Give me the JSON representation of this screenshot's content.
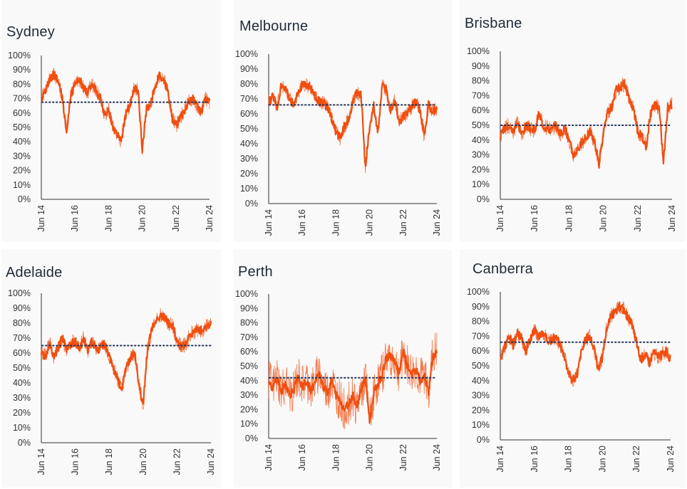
{
  "colors": {
    "series": "#f04e0f",
    "average_line": "#24335a",
    "axis": "#333333",
    "panel_bg": "#f9f9f9",
    "title": "#1f2a36"
  },
  "common": {
    "y_ticks": [
      "0%",
      "10%",
      "20%",
      "30%",
      "40%",
      "50%",
      "60%",
      "70%",
      "80%",
      "90%",
      "100%"
    ],
    "x_ticks": [
      "Jun 14",
      "Jun 16",
      "Jun 18",
      "Jun 20",
      "Jun 22",
      "Jun 24"
    ]
  },
  "chart_data": [
    {
      "type": "line",
      "title": "Sydney",
      "ylim": [
        0,
        100
      ],
      "average": 67.5,
      "x": [
        "Jun 14",
        "Sep 14",
        "Dec 14",
        "Mar 15",
        "Jun 15",
        "Sep 15",
        "Dec 15",
        "Mar 16",
        "Jun 16",
        "Sep 16",
        "Dec 16",
        "Mar 17",
        "Jun 17",
        "Sep 17",
        "Dec 17",
        "Mar 18",
        "Jun 18",
        "Sep 18",
        "Dec 18",
        "Mar 19",
        "Jun 19",
        "Sep 19",
        "Dec 19",
        "Mar 20",
        "Jun 20",
        "Sep 20",
        "Dec 20",
        "Mar 21",
        "Jun 21",
        "Sep 21",
        "Dec 21",
        "Mar 22",
        "Jun 22",
        "Sep 22",
        "Dec 22",
        "Mar 23",
        "Jun 23",
        "Sep 23",
        "Dec 23",
        "Mar 24",
        "Jun 24"
      ],
      "values": [
        70,
        76,
        84,
        87,
        83,
        70,
        48,
        72,
        80,
        83,
        78,
        74,
        80,
        76,
        71,
        58,
        62,
        50,
        46,
        40,
        58,
        65,
        77,
        76,
        35,
        62,
        67,
        78,
        86,
        84,
        76,
        58,
        51,
        56,
        62,
        68,
        70,
        65,
        60,
        70,
        68
      ]
    },
    {
      "type": "line",
      "title": "Melbourne",
      "ylim": [
        0,
        100
      ],
      "average": 66,
      "x": [
        "Jun 14",
        "Sep 14",
        "Dec 14",
        "Mar 15",
        "Jun 15",
        "Sep 15",
        "Dec 15",
        "Mar 16",
        "Jun 16",
        "Sep 16",
        "Dec 16",
        "Mar 17",
        "Jun 17",
        "Sep 17",
        "Dec 17",
        "Mar 18",
        "Jun 18",
        "Sep 18",
        "Dec 18",
        "Mar 19",
        "Jun 19",
        "Sep 19",
        "Dec 19",
        "Mar 20",
        "Jun 20",
        "Sep 20",
        "Dec 20",
        "Mar 21",
        "Jun 21",
        "Sep 21",
        "Dec 21",
        "Mar 22",
        "Jun 22",
        "Sep 22",
        "Dec 22",
        "Mar 23",
        "Jun 23",
        "Sep 23",
        "Dec 23",
        "Mar 24",
        "Jun 24"
      ],
      "values": [
        68,
        72,
        64,
        80,
        76,
        70,
        66,
        74,
        80,
        79,
        77,
        72,
        68,
        68,
        64,
        57,
        48,
        44,
        52,
        56,
        68,
        74,
        72,
        25,
        50,
        65,
        48,
        78,
        76,
        62,
        70,
        55,
        58,
        60,
        65,
        68,
        62,
        45,
        66,
        62,
        63
      ]
    },
    {
      "type": "line",
      "title": "Brisbane",
      "ylim": [
        0,
        100
      ],
      "average": 50,
      "x": [
        "Jun 14",
        "Sep 14",
        "Dec 14",
        "Mar 15",
        "Jun 15",
        "Sep 15",
        "Dec 15",
        "Mar 16",
        "Jun 16",
        "Sep 16",
        "Dec 16",
        "Mar 17",
        "Jun 17",
        "Sep 17",
        "Dec 17",
        "Mar 18",
        "Jun 18",
        "Sep 18",
        "Dec 18",
        "Mar 19",
        "Jun 19",
        "Sep 19",
        "Dec 19",
        "Mar 20",
        "Jun 20",
        "Sep 20",
        "Dec 20",
        "Mar 21",
        "Jun 21",
        "Sep 21",
        "Dec 21",
        "Mar 22",
        "Jun 22",
        "Sep 22",
        "Dec 22",
        "Mar 23",
        "Jun 23",
        "Sep 23",
        "Dec 23",
        "Mar 24",
        "Jun 24"
      ],
      "values": [
        42,
        48,
        50,
        46,
        52,
        44,
        50,
        48,
        46,
        58,
        50,
        48,
        47,
        50,
        44,
        48,
        40,
        30,
        34,
        38,
        42,
        46,
        38,
        24,
        44,
        58,
        62,
        74,
        76,
        78,
        68,
        62,
        46,
        42,
        36,
        58,
        64,
        62,
        25,
        62,
        64
      ]
    },
    {
      "type": "line",
      "title": "Adelaide",
      "ylim": [
        0,
        100
      ],
      "average": 65,
      "x": [
        "Jun 14",
        "Sep 14",
        "Dec 14",
        "Mar 15",
        "Jun 15",
        "Sep 15",
        "Dec 15",
        "Mar 16",
        "Jun 16",
        "Sep 16",
        "Dec 16",
        "Mar 17",
        "Jun 17",
        "Sep 17",
        "Dec 17",
        "Mar 18",
        "Jun 18",
        "Sep 18",
        "Dec 18",
        "Mar 19",
        "Jun 19",
        "Sep 19",
        "Dec 19",
        "Mar 20",
        "Jun 20",
        "Sep 20",
        "Dec 20",
        "Mar 21",
        "Jun 21",
        "Sep 21",
        "Dec 21",
        "Mar 22",
        "Jun 22",
        "Sep 22",
        "Dec 22",
        "Mar 23",
        "Jun 23",
        "Sep 23",
        "Dec 23",
        "Mar 24",
        "Jun 24"
      ],
      "values": [
        60,
        58,
        68,
        56,
        64,
        70,
        62,
        66,
        68,
        64,
        70,
        62,
        68,
        62,
        64,
        66,
        58,
        50,
        42,
        36,
        50,
        56,
        60,
        40,
        24,
        62,
        76,
        82,
        86,
        84,
        80,
        78,
        68,
        64,
        66,
        72,
        74,
        76,
        74,
        78,
        80
      ]
    },
    {
      "type": "line",
      "title": "Perth",
      "ylim": [
        0,
        100
      ],
      "average": 42,
      "x": [
        "Jun 14",
        "Sep 14",
        "Dec 14",
        "Mar 15",
        "Jun 15",
        "Sep 15",
        "Dec 15",
        "Mar 16",
        "Jun 16",
        "Sep 16",
        "Dec 16",
        "Mar 17",
        "Jun 17",
        "Sep 17",
        "Dec 17",
        "Mar 18",
        "Jun 18",
        "Sep 18",
        "Dec 18",
        "Mar 19",
        "Jun 19",
        "Sep 19",
        "Dec 19",
        "Mar 20",
        "Jun 20",
        "Sep 20",
        "Dec 20",
        "Mar 21",
        "Jun 21",
        "Sep 21",
        "Dec 21",
        "Mar 22",
        "Jun 22",
        "Sep 22",
        "Dec 22",
        "Mar 23",
        "Jun 23",
        "Sep 23",
        "Dec 23",
        "Mar 24",
        "Jun 24"
      ],
      "values": [
        40,
        35,
        42,
        32,
        38,
        30,
        34,
        42,
        36,
        40,
        33,
        38,
        46,
        36,
        32,
        40,
        30,
        26,
        20,
        24,
        30,
        22,
        34,
        42,
        12,
        32,
        38,
        44,
        56,
        58,
        52,
        46,
        60,
        50,
        44,
        48,
        40,
        44,
        32,
        56,
        60
      ]
    },
    {
      "type": "line",
      "title": "Canberra",
      "ylim": [
        0,
        100
      ],
      "average": 66,
      "x": [
        "Jun 14",
        "Sep 14",
        "Dec 14",
        "Mar 15",
        "Jun 15",
        "Sep 15",
        "Dec 15",
        "Mar 16",
        "Jun 16",
        "Sep 16",
        "Dec 16",
        "Mar 17",
        "Jun 17",
        "Sep 17",
        "Dec 17",
        "Mar 18",
        "Jun 18",
        "Sep 18",
        "Dec 18",
        "Mar 19",
        "Jun 19",
        "Sep 19",
        "Dec 19",
        "Mar 20",
        "Jun 20",
        "Sep 20",
        "Dec 20",
        "Mar 21",
        "Jun 21",
        "Sep 21",
        "Dec 21",
        "Mar 22",
        "Jun 22",
        "Sep 22",
        "Dec 22",
        "Mar 23",
        "Jun 23",
        "Sep 23",
        "Dec 23",
        "Mar 24",
        "Jun 24"
      ],
      "values": [
        55,
        62,
        70,
        64,
        72,
        68,
        60,
        68,
        74,
        70,
        72,
        68,
        66,
        70,
        64,
        58,
        46,
        40,
        44,
        58,
        68,
        70,
        62,
        48,
        56,
        76,
        84,
        86,
        90,
        88,
        82,
        78,
        66,
        54,
        58,
        52,
        60,
        56,
        58,
        60,
        54
      ]
    }
  ]
}
